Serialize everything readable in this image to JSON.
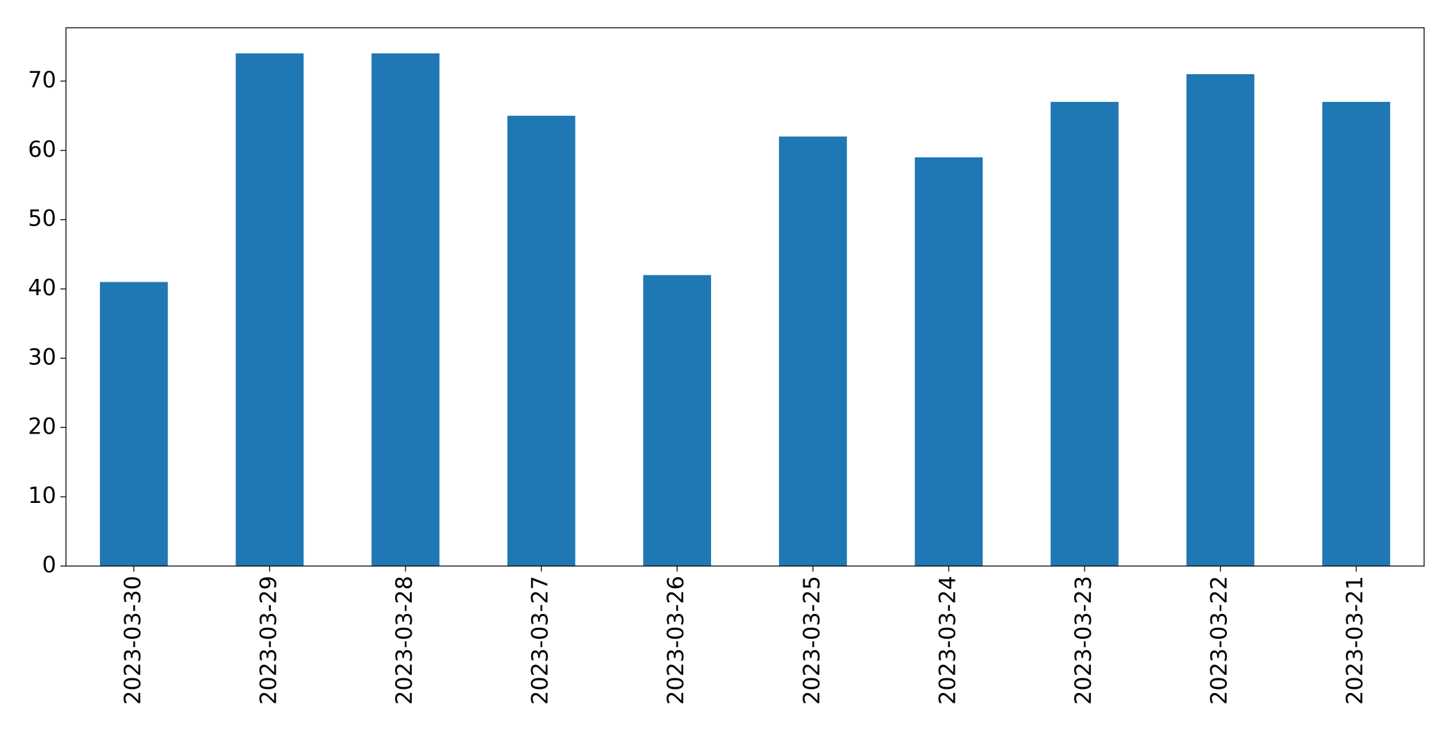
{
  "chart_data": {
    "type": "bar",
    "categories": [
      "2023-03-30",
      "2023-03-29",
      "2023-03-28",
      "2023-03-27",
      "2023-03-26",
      "2023-03-25",
      "2023-03-24",
      "2023-03-23",
      "2023-03-22",
      "2023-03-21"
    ],
    "values": [
      41,
      74,
      74,
      65,
      42,
      62,
      59,
      67,
      71,
      67
    ],
    "color": "#1f77b4",
    "ylim": [
      0,
      77.7
    ],
    "yticks": [
      0,
      10,
      20,
      30,
      40,
      50,
      60,
      70
    ],
    "grid": false
  }
}
